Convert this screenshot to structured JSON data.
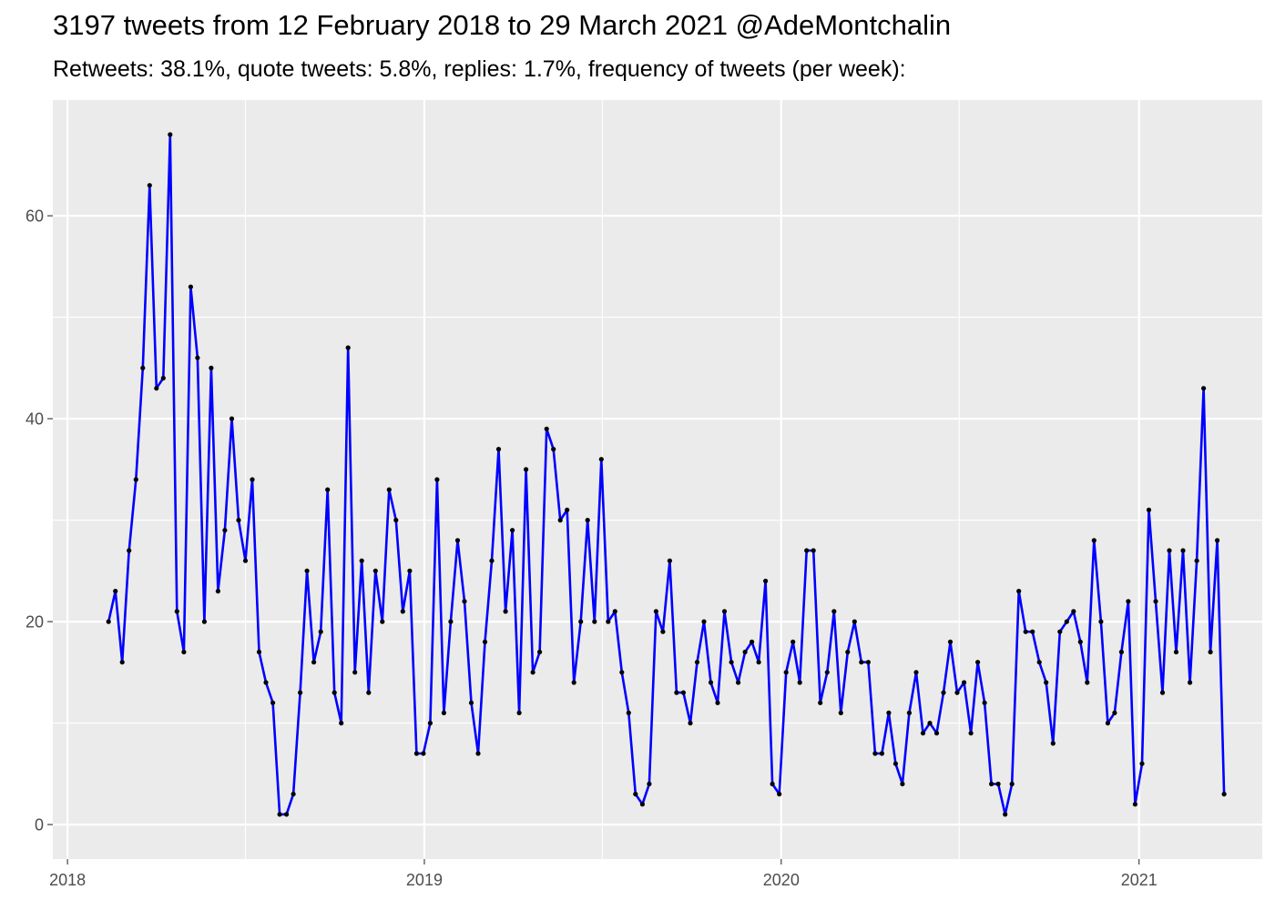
{
  "chart_data": {
    "type": "line",
    "title": "3197 tweets from 12 February 2018 to 29 March 2021 @AdeMontchalin",
    "subtitle": "Retweets: 38.1%, quote tweets: 5.8%, replies: 1.7%, frequency of tweets (per week):",
    "xlabel": "",
    "ylabel": "",
    "x_type": "date",
    "xlim": [
      "2017-12-17",
      "2021-05-07"
    ],
    "ylim": [
      -3.4,
      71.4
    ],
    "x_ticks": [
      {
        "value": "2018-01-01",
        "label": "2018"
      },
      {
        "value": "2019-01-01",
        "label": "2019"
      },
      {
        "value": "2020-01-01",
        "label": "2020"
      },
      {
        "value": "2021-01-01",
        "label": "2021"
      }
    ],
    "x_minor_ticks": [
      "2018-07-02",
      "2019-07-02",
      "2020-07-01"
    ],
    "y_ticks": [
      0,
      20,
      40,
      60
    ],
    "y_minor_ticks": [
      10,
      30,
      50
    ],
    "grid": true,
    "panel_background": "#ebebeb",
    "grid_color": "#ffffff",
    "line_color": "#0000ff",
    "point_color": "#000000",
    "series": [
      {
        "x": [
          "2018-02-12",
          "2018-02-19",
          "2018-02-26",
          "2018-03-05",
          "2018-03-12",
          "2018-03-19",
          "2018-03-26",
          "2018-04-02",
          "2018-04-09",
          "2018-04-16",
          "2018-04-23",
          "2018-04-30",
          "2018-05-07",
          "2018-05-14",
          "2018-05-21",
          "2018-05-28",
          "2018-06-04",
          "2018-06-11",
          "2018-06-18",
          "2018-06-25",
          "2018-07-02",
          "2018-07-09",
          "2018-07-16",
          "2018-07-23",
          "2018-07-30",
          "2018-08-06",
          "2018-08-13",
          "2018-08-20",
          "2018-08-27",
          "2018-09-03",
          "2018-09-10",
          "2018-09-17",
          "2018-09-24",
          "2018-10-01",
          "2018-10-08",
          "2018-10-15",
          "2018-10-22",
          "2018-10-29",
          "2018-11-05",
          "2018-11-12",
          "2018-11-19",
          "2018-11-26",
          "2018-12-03",
          "2018-12-10",
          "2018-12-17",
          "2018-12-24",
          "2018-12-31",
          "2019-01-07",
          "2019-01-14",
          "2019-01-21",
          "2019-01-28",
          "2019-02-04",
          "2019-02-11",
          "2019-02-18",
          "2019-02-25",
          "2019-03-04",
          "2019-03-11",
          "2019-03-18",
          "2019-03-25",
          "2019-04-01",
          "2019-04-08",
          "2019-04-15",
          "2019-04-22",
          "2019-04-29",
          "2019-05-06",
          "2019-05-13",
          "2019-05-20",
          "2019-05-27",
          "2019-06-03",
          "2019-06-10",
          "2019-06-17",
          "2019-06-24",
          "2019-07-01",
          "2019-07-08",
          "2019-07-15",
          "2019-07-22",
          "2019-07-29",
          "2019-08-05",
          "2019-08-12",
          "2019-08-19",
          "2019-08-26",
          "2019-09-02",
          "2019-09-09",
          "2019-09-16",
          "2019-09-23",
          "2019-09-30",
          "2019-10-07",
          "2019-10-14",
          "2019-10-21",
          "2019-10-28",
          "2019-11-04",
          "2019-11-11",
          "2019-11-18",
          "2019-11-25",
          "2019-12-02",
          "2019-12-09",
          "2019-12-16",
          "2019-12-23",
          "2019-12-30",
          "2020-01-06",
          "2020-01-13",
          "2020-01-20",
          "2020-01-27",
          "2020-02-03",
          "2020-02-10",
          "2020-02-17",
          "2020-02-24",
          "2020-03-02",
          "2020-03-09",
          "2020-03-16",
          "2020-03-23",
          "2020-03-30",
          "2020-04-06",
          "2020-04-13",
          "2020-04-20",
          "2020-04-27",
          "2020-05-04",
          "2020-05-11",
          "2020-05-18",
          "2020-05-25",
          "2020-06-01",
          "2020-06-08",
          "2020-06-15",
          "2020-06-22",
          "2020-06-29",
          "2020-07-06",
          "2020-07-13",
          "2020-07-20",
          "2020-07-27",
          "2020-08-03",
          "2020-08-10",
          "2020-08-17",
          "2020-08-24",
          "2020-08-31",
          "2020-09-07",
          "2020-09-14",
          "2020-09-21",
          "2020-09-28",
          "2020-10-05",
          "2020-10-12",
          "2020-10-19",
          "2020-10-26",
          "2020-11-02",
          "2020-11-09",
          "2020-11-16",
          "2020-11-23",
          "2020-11-30",
          "2020-12-07",
          "2020-12-14",
          "2020-12-21",
          "2020-12-28",
          "2021-01-04",
          "2021-01-11",
          "2021-01-18",
          "2021-01-25",
          "2021-02-01",
          "2021-02-08",
          "2021-02-15",
          "2021-02-22",
          "2021-03-01",
          "2021-03-08",
          "2021-03-15",
          "2021-03-22",
          "2021-03-29"
        ],
        "values": [
          20,
          23,
          16,
          27,
          34,
          45,
          63,
          43,
          44,
          68,
          21,
          17,
          53,
          46,
          20,
          45,
          23,
          29,
          40,
          30,
          26,
          34,
          17,
          14,
          12,
          1,
          1,
          3,
          13,
          25,
          16,
          19,
          33,
          13,
          10,
          47,
          15,
          26,
          13,
          25,
          20,
          33,
          30,
          21,
          25,
          7,
          7,
          10,
          34,
          11,
          20,
          28,
          22,
          12,
          7,
          18,
          26,
          37,
          21,
          29,
          11,
          35,
          15,
          17,
          39,
          37,
          30,
          31,
          14,
          20,
          30,
          20,
          36,
          20,
          21,
          15,
          11,
          3,
          2,
          4,
          21,
          19,
          26,
          13,
          13,
          10,
          16,
          20,
          14,
          12,
          21,
          16,
          14,
          17,
          18,
          16,
          24,
          4,
          3,
          15,
          18,
          14,
          27,
          27,
          12,
          15,
          21,
          11,
          17,
          20,
          16,
          16,
          7,
          7,
          11,
          6,
          4,
          11,
          15,
          9,
          10,
          9,
          13,
          18,
          13,
          14,
          9,
          16,
          12,
          4,
          4,
          1,
          4,
          23,
          19,
          19,
          16,
          14,
          8,
          19,
          20,
          21,
          18,
          14,
          28,
          20,
          10,
          11,
          17,
          22,
          2,
          6,
          31,
          22,
          13,
          27,
          17,
          27,
          14,
          26,
          43,
          17,
          28,
          3
        ]
      }
    ]
  }
}
